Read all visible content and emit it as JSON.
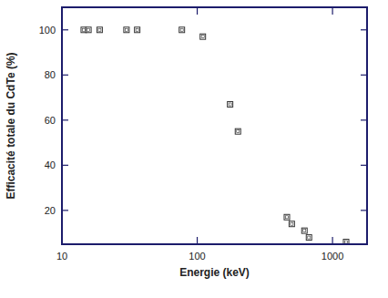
{
  "chart_data": {
    "type": "scatter",
    "x_label": "Energie (keV)",
    "y_label": "Efficacité totale du CdTe (%)",
    "x": [
      14.5,
      15.7,
      19,
      30,
      36,
      77,
      110,
      175,
      200,
      460,
      500,
      620,
      670,
      1260
    ],
    "values": [
      100,
      100,
      100,
      100,
      100,
      100,
      97,
      67,
      55,
      17,
      14,
      11,
      8,
      6
    ],
    "xlim": [
      10,
      1800
    ],
    "ylim": [
      5,
      110
    ],
    "xticks": [
      10,
      100,
      1000
    ],
    "yticks": [
      20,
      40,
      60,
      80,
      100
    ],
    "log": "x",
    "marker": "square",
    "color": "#333333"
  }
}
